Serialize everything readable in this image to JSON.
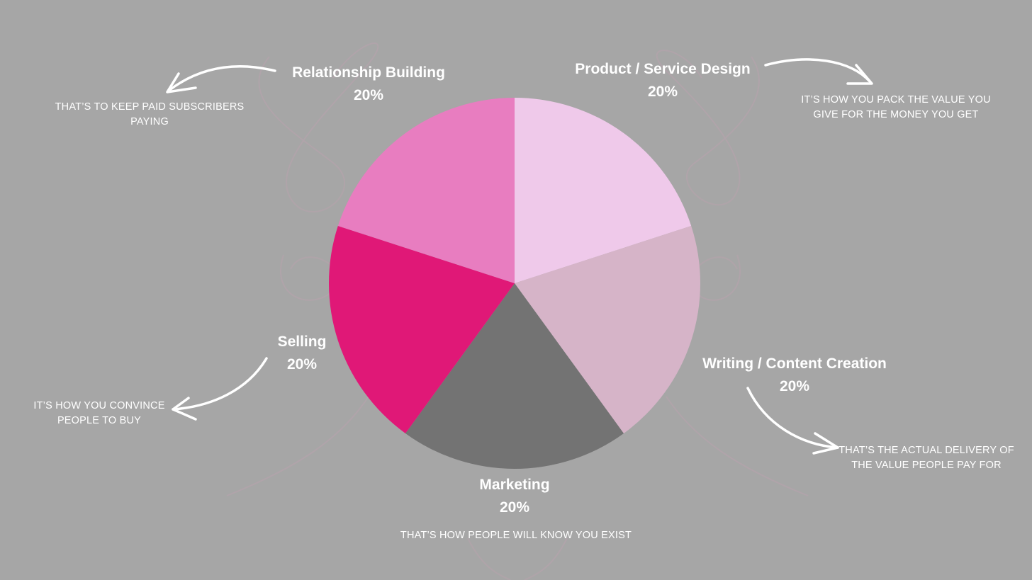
{
  "chart_data": {
    "type": "pie",
    "title": "",
    "slices": [
      {
        "label": "Product / Service Design",
        "value": 20,
        "pct_label": "20%",
        "color": "#efc9ea",
        "note": "IT’S HOW YOU PACK THE VALUE YOU GIVE FOR THE MONEY YOU GET"
      },
      {
        "label": "Writing / Content Creation",
        "value": 20,
        "pct_label": "20%",
        "color": "#d6b4c8",
        "note": "THAT’S THE ACTUAL DELIVERY OF THE VALUE PEOPLE PAY FOR"
      },
      {
        "label": "Marketing",
        "value": 20,
        "pct_label": "20%",
        "color": "#737373",
        "note": "THAT’S HOW PEOPLE WILL KNOW YOU EXIST"
      },
      {
        "label": "Selling",
        "value": 20,
        "pct_label": "20%",
        "color": "#e01877",
        "note": "IT’S HOW YOU CONVINCE PEOPLE TO BUY"
      },
      {
        "label": "Relationship Building",
        "value": 20,
        "pct_label": "20%",
        "color": "#e87dc0",
        "note": "THAT’S TO KEEP PAID SUBSCRIBERS PAYING"
      }
    ],
    "start_angle": "12 o'clock",
    "direction": "clockwise"
  },
  "colors": {
    "background": "#a6a6a6",
    "text": "#ffffff"
  }
}
